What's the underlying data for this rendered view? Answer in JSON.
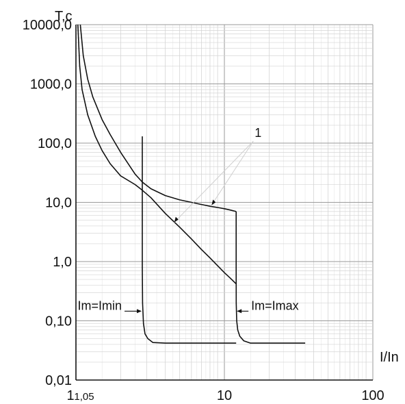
{
  "chart_data": {
    "type": "line",
    "title": "",
    "xlabel": "I/In",
    "ylabel": "T,c",
    "x_scale": "log",
    "y_scale": "log",
    "xlim": [
      1,
      100
    ],
    "ylim": [
      0.01,
      10000
    ],
    "x_ticks": [
      {
        "value": 1,
        "label": "1"
      },
      {
        "value": 1.05,
        "label": "1,05"
      },
      {
        "value": 10,
        "label": "10"
      },
      {
        "value": 100,
        "label": "100"
      }
    ],
    "y_ticks": [
      {
        "value": 10000,
        "label": "10000,0"
      },
      {
        "value": 1000,
        "label": "1000,0"
      },
      {
        "value": 100,
        "label": "100,0"
      },
      {
        "value": 10,
        "label": "10,0"
      },
      {
        "value": 1,
        "label": "1,0"
      },
      {
        "value": 0.1,
        "label": "0,10"
      },
      {
        "value": 0.01,
        "label": "0,01"
      }
    ],
    "grid": true,
    "series": [
      {
        "x": [
          1.03,
          1.06,
          1.1,
          1.2,
          1.35,
          1.5,
          1.7,
          2.0,
          2.5,
          2.8,
          3.2,
          4.0,
          5.0,
          6.0,
          7.0,
          8.0,
          9.0,
          10.0,
          11.0,
          12.0
        ],
        "y": [
          10000,
          2000,
          800,
          300,
          130,
          75,
          45,
          28,
          20,
          16,
          12,
          6.5,
          3.8,
          2.4,
          1.6,
          1.15,
          0.85,
          0.65,
          0.52,
          0.42
        ]
      },
      {
        "x": [
          1.07,
          1.12,
          1.2,
          1.3,
          1.5,
          1.7,
          2.0,
          2.5,
          2.8,
          3.2,
          4.0,
          5.0,
          6.0,
          7.0,
          8.0,
          9.0,
          10.0,
          11.0,
          12.0
        ],
        "y": [
          10000,
          3000,
          1200,
          600,
          250,
          140,
          70,
          30,
          22,
          17,
          13,
          11,
          10,
          9.2,
          8.6,
          8.2,
          7.8,
          7.4,
          7.0
        ]
      },
      {
        "x": [
          2.8,
          2.8,
          2.81,
          2.85,
          2.92,
          3.05,
          3.3,
          4.0,
          8.0,
          12.0
        ],
        "y": [
          130,
          0.8,
          0.2,
          0.09,
          0.06,
          0.05,
          0.043,
          0.042,
          0.042,
          0.042
        ]
      },
      {
        "x": [
          12.0,
          12.0,
          12.02,
          12.1,
          12.3,
          12.7,
          13.5,
          15.0,
          25.0,
          35.0
        ],
        "y": [
          7.0,
          0.8,
          0.2,
          0.1,
          0.07,
          0.055,
          0.046,
          0.042,
          0.042,
          0.042
        ]
      }
    ],
    "annotations": [
      {
        "text": "Im=Imin",
        "x": 2.8,
        "y": 0.18,
        "arrow_to": "left boundary"
      },
      {
        "text": "Im=Imax",
        "x": 12.0,
        "y": 0.18,
        "arrow_to": "right boundary"
      },
      {
        "text": "1",
        "x": 16.0,
        "y": 120,
        "refers_to": "lower and upper curves"
      }
    ]
  }
}
